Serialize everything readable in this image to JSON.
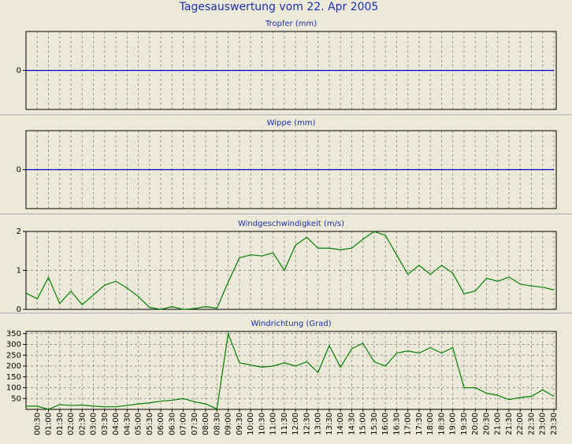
{
  "title": "Tagesauswertung vom 22. Apr 2005",
  "chart_data": [
    {
      "type": "line",
      "title": "Tropfer (mm)",
      "ylim": [
        -1,
        1
      ],
      "yticks": [
        0
      ],
      "grid": true,
      "series": [
        {
          "color": "#0000c0",
          "values": [
            0,
            0,
            0,
            0,
            0,
            0,
            0,
            0,
            0,
            0,
            0,
            0,
            0,
            0,
            0,
            0,
            0,
            0,
            0,
            0,
            0,
            0,
            0,
            0,
            0,
            0,
            0,
            0,
            0,
            0,
            0,
            0,
            0,
            0,
            0,
            0,
            0,
            0,
            0,
            0,
            0,
            0,
            0,
            0,
            0,
            0,
            0,
            0
          ]
        }
      ]
    },
    {
      "type": "line",
      "title": "Wippe (mm)",
      "ylim": [
        -1,
        1
      ],
      "yticks": [
        0
      ],
      "grid": true,
      "series": [
        {
          "color": "#0000c0",
          "values": [
            0,
            0,
            0,
            0,
            0,
            0,
            0,
            0,
            0,
            0,
            0,
            0,
            0,
            0,
            0,
            0,
            0,
            0,
            0,
            0,
            0,
            0,
            0,
            0,
            0,
            0,
            0,
            0,
            0,
            0,
            0,
            0,
            0,
            0,
            0,
            0,
            0,
            0,
            0,
            0,
            0,
            0,
            0,
            0,
            0,
            0,
            0,
            0
          ]
        }
      ]
    },
    {
      "type": "line",
      "title": "Windgeschwindigkeit (m/s)",
      "ylim": [
        0,
        2
      ],
      "yticks": [
        0,
        1,
        2
      ],
      "grid": true,
      "series": [
        {
          "color": "#008000",
          "values": [
            0.42,
            0.27,
            0.82,
            0.15,
            0.47,
            0.12,
            0.37,
            0.62,
            0.72,
            0.55,
            0.33,
            0.05,
            0,
            0.07,
            0,
            0.02,
            0.07,
            0.03,
            0.7,
            1.32,
            1.4,
            1.37,
            1.45,
            1.0,
            1.65,
            1.85,
            1.57,
            1.57,
            1.53,
            1.57,
            1.8,
            2.0,
            1.9,
            1.4,
            0.9,
            1.13,
            0.9,
            1.13,
            0.93,
            0.4,
            0.47,
            0.8,
            0.72,
            0.83,
            0.65,
            0.6,
            0.57,
            0.5
          ]
        }
      ]
    },
    {
      "type": "line",
      "title": "Windrichtung (Grad)",
      "ylim": [
        0,
        360
      ],
      "yticks": [
        50,
        100,
        150,
        200,
        250,
        300,
        350
      ],
      "grid": true,
      "categories": [
        null,
        "00:30",
        "01:00",
        "01:30",
        "02:00",
        "02:30",
        "03:00",
        "03:30",
        "04:00",
        "04:30",
        "05:00",
        "05:30",
        "06:00",
        "06:30",
        "07:00",
        "07:30",
        "08:00",
        "08:30",
        "09:00",
        "09:30",
        "10:00",
        "10:30",
        "11:00",
        "11:30",
        "12:00",
        "12:30",
        "13:00",
        "13:30",
        "14:00",
        "14:30",
        "15:00",
        "15:30",
        "16:00",
        "16:30",
        "17:00",
        "17:30",
        "18:00",
        "18:30",
        "19:00",
        "19:30",
        "20:00",
        "20:30",
        "21:00",
        "21:30",
        "22:00",
        "22:30",
        "23:00",
        "23:30"
      ],
      "series": [
        {
          "color": "#008000",
          "values": [
            15,
            15,
            0,
            22,
            18,
            20,
            15,
            12,
            12,
            18,
            25,
            30,
            38,
            42,
            50,
            35,
            25,
            2,
            350,
            215,
            205,
            195,
            200,
            215,
            200,
            220,
            170,
            295,
            195,
            280,
            305,
            220,
            200,
            260,
            270,
            260,
            285,
            260,
            285,
            100,
            100,
            75,
            65,
            45,
            55,
            60,
            90,
            60
          ]
        }
      ]
    }
  ]
}
